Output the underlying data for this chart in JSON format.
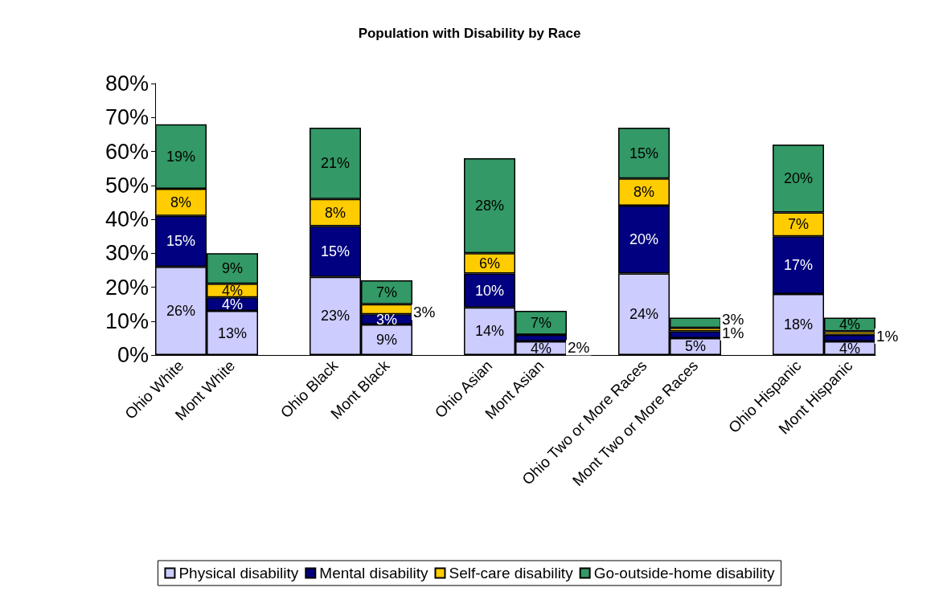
{
  "chart_data": {
    "type": "bar",
    "title": "Population with Disability by Race",
    "stacked": true,
    "categories": [
      "Ohio White",
      "Mont White",
      null,
      "Ohio Black",
      "Mont Black",
      null,
      "Ohio Asian",
      "Mont Asian",
      null,
      "Ohio Two or More Races",
      "Mont Two or More Races",
      null,
      "Ohio Hispanic",
      "Mont Hispanic"
    ],
    "series": [
      {
        "name": "Physical disability",
        "color": "#ccccff",
        "values": [
          26,
          13,
          null,
          23,
          9,
          null,
          14,
          4,
          null,
          24,
          5,
          null,
          18,
          4
        ],
        "value_labels": [
          "26%",
          "13%",
          null,
          "23%",
          "9%",
          null,
          "14%",
          "4%",
          null,
          "24%",
          "5%",
          null,
          "18%",
          "4%"
        ]
      },
      {
        "name": "Mental disability",
        "color": "#000080",
        "values": [
          15,
          4,
          null,
          15,
          3,
          null,
          10,
          2,
          null,
          20,
          2,
          null,
          17,
          2
        ],
        "value_labels": [
          "15%",
          "4%",
          null,
          "15%",
          "3%",
          null,
          "10%",
          "2%",
          null,
          "20%",
          null,
          null,
          "17%",
          null
        ]
      },
      {
        "name": "Self-care disability",
        "color": "#ffcc00",
        "values": [
          8,
          4,
          null,
          8,
          3,
          null,
          6,
          0,
          null,
          8,
          1,
          null,
          7,
          1
        ],
        "value_labels": [
          "8%",
          "4%",
          null,
          "8%",
          "3%",
          null,
          "6%",
          null,
          null,
          "8%",
          "1%",
          null,
          "7%",
          "1%"
        ]
      },
      {
        "name": "Go-outside-home disability",
        "color": "#339966",
        "values": [
          19,
          9,
          null,
          21,
          7,
          null,
          28,
          7,
          null,
          15,
          3,
          null,
          20,
          4
        ],
        "value_labels": [
          "19%",
          "9%",
          null,
          "21%",
          "7%",
          null,
          "28%",
          "7%",
          null,
          "15%",
          "3%",
          null,
          "20%",
          "4%"
        ]
      }
    ],
    "ylim": [
      0,
      80
    ],
    "yticks": [
      {
        "value": 0,
        "label": "0%"
      },
      {
        "value": 10,
        "label": "10%"
      },
      {
        "value": 20,
        "label": "20%"
      },
      {
        "value": 30,
        "label": "30%"
      },
      {
        "value": 40,
        "label": "40%"
      },
      {
        "value": 50,
        "label": "50%"
      },
      {
        "value": 60,
        "label": "60%"
      },
      {
        "value": 70,
        "label": "70%"
      },
      {
        "value": 80,
        "label": "80%"
      }
    ],
    "grid": false,
    "legend": "bottom"
  }
}
